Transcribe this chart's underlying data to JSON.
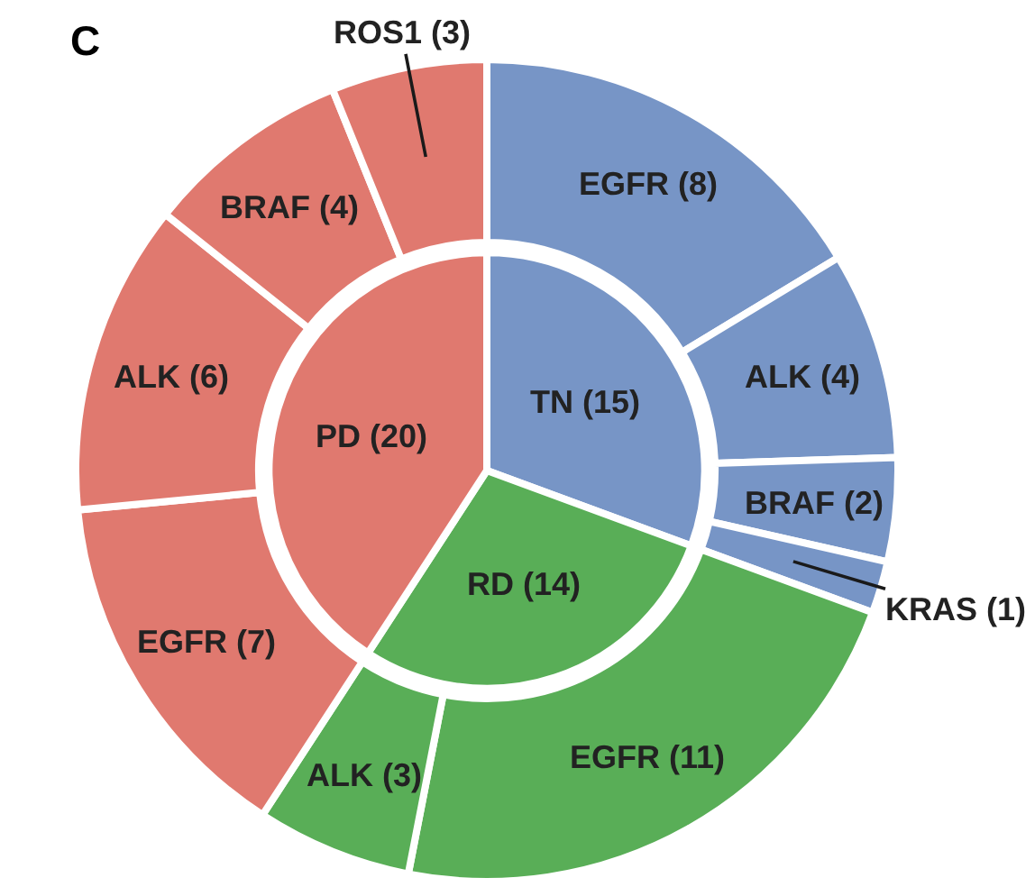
{
  "chart_data": [
    {
      "type": "donut",
      "title": "C",
      "categories": [
        "EGFR (8)",
        "ALK (4)",
        "BRAF (2)",
        "KRAS (1)",
        "EGFR (11)",
        "ALK (3)",
        "EGFR (7)",
        "ALK (6)",
        "BRAF (4)",
        "ROS1 (3)"
      ],
      "values": [
        8,
        4,
        2,
        1,
        11,
        3,
        7,
        6,
        4,
        3
      ],
      "colors": [
        "#7795c6",
        "#7795c6",
        "#7795c6",
        "#7795c6",
        "#59ae57",
        "#59ae57",
        "#e0796f",
        "#e0796f",
        "#e0796f",
        "#e0796f"
      ]
    },
    {
      "type": "pie",
      "categories": [
        "TN (15)",
        "RD (14)",
        "PD (20)"
      ],
      "values": [
        15,
        14,
        20
      ],
      "colors": [
        "#7795c6",
        "#59ae57",
        "#e0796f"
      ]
    }
  ]
}
